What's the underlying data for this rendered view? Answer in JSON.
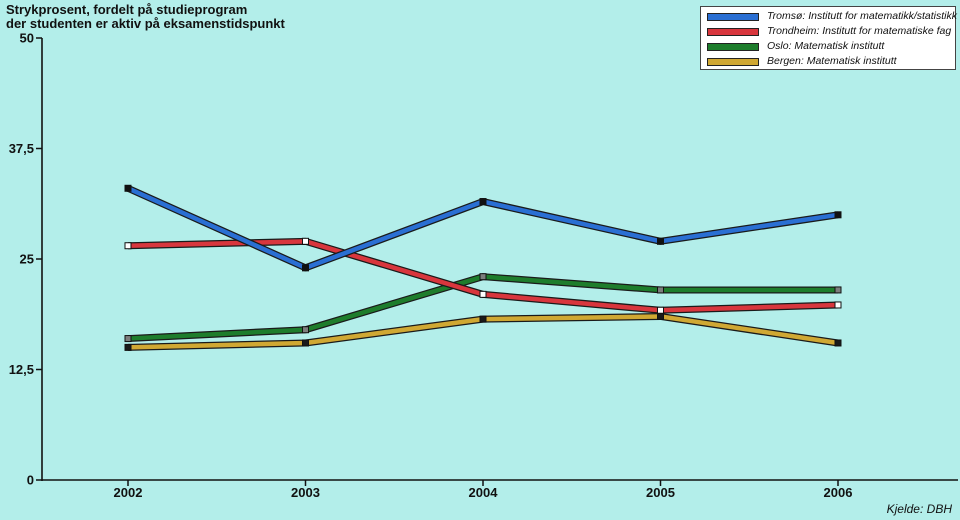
{
  "chart_data": {
    "type": "line",
    "title": [
      "Strykprosent, fordelt på studieprogram",
      "der studenten er aktiv på eksamenstidspunkt"
    ],
    "xlabel": "",
    "ylabel": "",
    "categories": [
      "2002",
      "2003",
      "2004",
      "2005",
      "2006"
    ],
    "ylim": [
      0,
      50
    ],
    "yticks": [
      0,
      12.5,
      25,
      37.5,
      50
    ],
    "ytick_labels": [
      "0",
      "12,5",
      "25",
      "37,5",
      "50"
    ],
    "grid": false,
    "legend_position": "top-right",
    "source": "Kjelde: DBH",
    "series": [
      {
        "name": "Tromsø: Institutt for matematikk/statistikk",
        "color": "#2a6fd3",
        "values": [
          33.0,
          24.0,
          31.5,
          27.0,
          30.0
        ]
      },
      {
        "name": "Trondheim: Institutt for matematiske fag",
        "color": "#d8363d",
        "values": [
          26.5,
          27.0,
          21.0,
          19.2,
          19.8
        ]
      },
      {
        "name": "Oslo: Matematisk institutt",
        "color": "#1e7d2c",
        "values": [
          16.0,
          17.0,
          23.0,
          21.5,
          21.5
        ]
      },
      {
        "name": "Bergen: Matematisk institutt",
        "color": "#d0a833",
        "values": [
          15.0,
          15.5,
          18.2,
          18.5,
          15.5
        ]
      }
    ]
  }
}
